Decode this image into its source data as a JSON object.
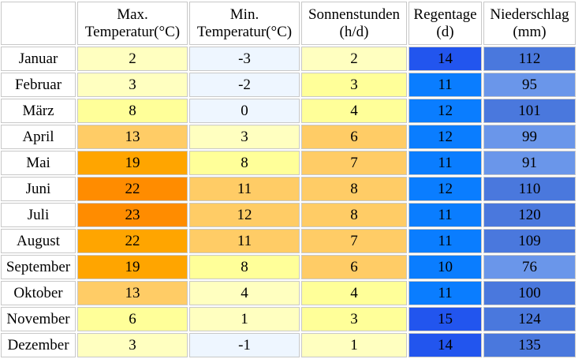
{
  "headers": [
    "",
    "Max. Temperatur(°C)",
    "Min. Temperatur(°C)",
    "Sonnenstunden (h/d)",
    "Regentage (d)",
    "Niederschlag (mm)"
  ],
  "header_lines": [
    [
      "",
      ""
    ],
    [
      "Max.",
      "Temperatur(°C)"
    ],
    [
      "Min.",
      "Temperatur(°C)"
    ],
    [
      "Sonnenstunden",
      "(h/d)"
    ],
    [
      "Regentage",
      "(d)"
    ],
    [
      "Niederschlag",
      "(mm)"
    ]
  ],
  "rows": [
    {
      "month": "Januar",
      "max": "2",
      "min": "-3",
      "sun": "2",
      "rain_days": "14",
      "precip": "112",
      "colors": {
        "max": "#ffffc0",
        "min": "#eef6ff",
        "sun": "#ffffc0",
        "rain_days": "#2255ee",
        "precip": "#4a78dd"
      }
    },
    {
      "month": "Februar",
      "max": "3",
      "min": "-2",
      "sun": "3",
      "rain_days": "11",
      "precip": "95",
      "colors": {
        "max": "#ffffc0",
        "min": "#eef6ff",
        "sun": "#ffff99",
        "rain_days": "#0a7dff",
        "precip": "#6a96ea"
      }
    },
    {
      "month": "März",
      "max": "8",
      "min": "0",
      "sun": "4",
      "rain_days": "12",
      "precip": "101",
      "colors": {
        "max": "#ffff99",
        "min": "#eef6ff",
        "sun": "#ffff99",
        "rain_days": "#0a7dff",
        "precip": "#4a78dd"
      }
    },
    {
      "month": "April",
      "max": "13",
      "min": "3",
      "sun": "6",
      "rain_days": "12",
      "precip": "99",
      "colors": {
        "max": "#ffcc66",
        "min": "#ffffc0",
        "sun": "#ffcc66",
        "rain_days": "#0a7dff",
        "precip": "#6a96ea"
      }
    },
    {
      "month": "Mai",
      "max": "19",
      "min": "8",
      "sun": "7",
      "rain_days": "11",
      "precip": "91",
      "colors": {
        "max": "#ffa500",
        "min": "#ffff99",
        "sun": "#ffcc66",
        "rain_days": "#0a7dff",
        "precip": "#6a96ea"
      }
    },
    {
      "month": "Juni",
      "max": "22",
      "min": "11",
      "sun": "8",
      "rain_days": "12",
      "precip": "110",
      "colors": {
        "max": "#ff8c00",
        "min": "#ffcc66",
        "sun": "#ffcc66",
        "rain_days": "#0a7dff",
        "precip": "#4a78dd"
      }
    },
    {
      "month": "Juli",
      "max": "23",
      "min": "12",
      "sun": "8",
      "rain_days": "11",
      "precip": "120",
      "colors": {
        "max": "#ff8c00",
        "min": "#ffcc66",
        "sun": "#ffcc66",
        "rain_days": "#0a7dff",
        "precip": "#4a78dd"
      }
    },
    {
      "month": "August",
      "max": "22",
      "min": "11",
      "sun": "7",
      "rain_days": "11",
      "precip": "109",
      "colors": {
        "max": "#ffa500",
        "min": "#ffcc66",
        "sun": "#ffcc66",
        "rain_days": "#0a7dff",
        "precip": "#4a78dd"
      }
    },
    {
      "month": "September",
      "max": "19",
      "min": "8",
      "sun": "6",
      "rain_days": "10",
      "precip": "76",
      "colors": {
        "max": "#ffa500",
        "min": "#ffff99",
        "sun": "#ffcc66",
        "rain_days": "#0a7dff",
        "precip": "#6a96ea"
      }
    },
    {
      "month": "Oktober",
      "max": "13",
      "min": "4",
      "sun": "4",
      "rain_days": "11",
      "precip": "100",
      "colors": {
        "max": "#ffcc66",
        "min": "#ffffc0",
        "sun": "#ffff99",
        "rain_days": "#0a7dff",
        "precip": "#4a78dd"
      }
    },
    {
      "month": "November",
      "max": "6",
      "min": "1",
      "sun": "3",
      "rain_days": "15",
      "precip": "124",
      "colors": {
        "max": "#ffff99",
        "min": "#ffffc0",
        "sun": "#ffff99",
        "rain_days": "#2255ee",
        "precip": "#4a78dd"
      }
    },
    {
      "month": "Dezember",
      "max": "3",
      "min": "-1",
      "sun": "1",
      "rain_days": "14",
      "precip": "135",
      "colors": {
        "max": "#ffffc0",
        "min": "#eef6ff",
        "sun": "#ffffc0",
        "rain_days": "#2255ee",
        "precip": "#4a78dd"
      }
    }
  ]
}
